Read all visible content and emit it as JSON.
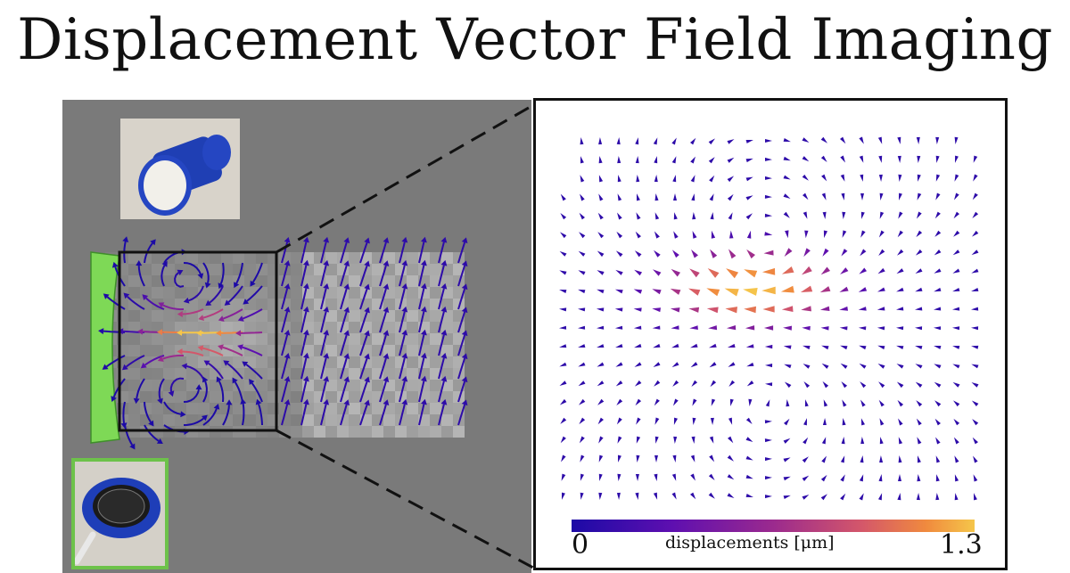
{
  "title": "Displacement Vector Field Imaging",
  "colorbar": {
    "min_label": "0",
    "max_label": "1.3",
    "title": "displacements [μm]",
    "colors": [
      "#1c0aa6",
      "#5e0fb0",
      "#9b2a8e",
      "#d4576a",
      "#f08a3e",
      "#f5c64a"
    ]
  },
  "figure": {
    "top_photo_subject": "blue cylindrical speaker enclosure",
    "bottom_photo_subject": "blue ring-mounted transducer disc",
    "transducer_color": "#7ed956",
    "scene_background": "#7a7a7a"
  }
}
